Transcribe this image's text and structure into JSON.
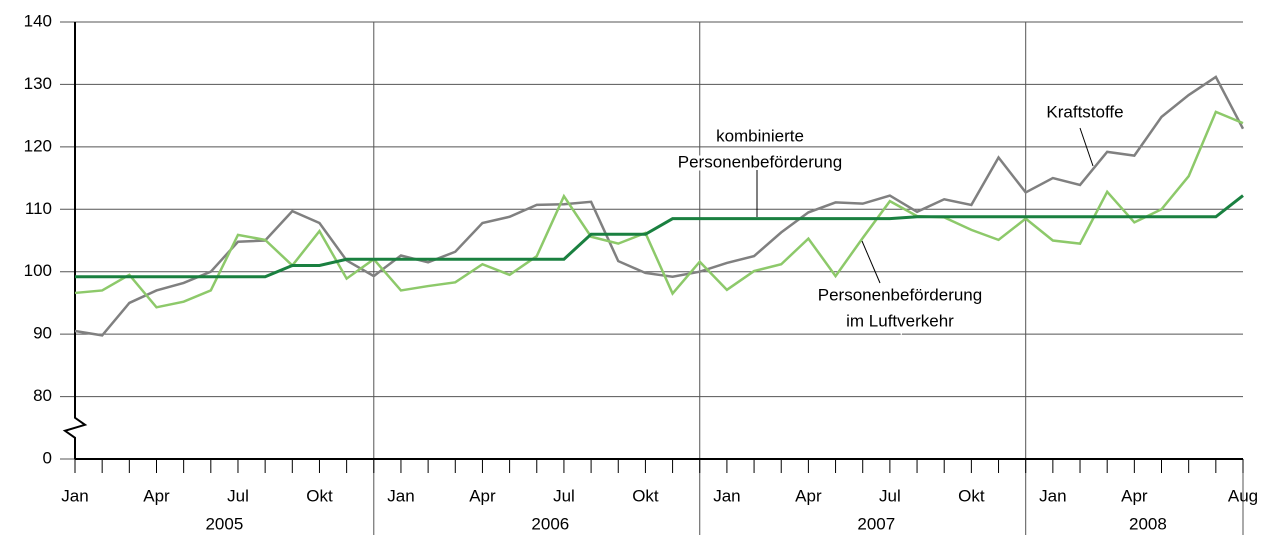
{
  "chart_data": {
    "type": "line",
    "categories": [
      "Jan",
      null,
      null,
      "Apr",
      null,
      null,
      "Jul",
      null,
      null,
      "Okt",
      null,
      null,
      "Jan",
      null,
      null,
      "Apr",
      null,
      null,
      "Jul",
      null,
      null,
      "Okt",
      null,
      null,
      "Jan",
      null,
      null,
      "Apr",
      null,
      null,
      "Jul",
      null,
      null,
      "Okt",
      null,
      null,
      "Jan",
      null,
      null,
      "Apr",
      null,
      null,
      null,
      "Aug"
    ],
    "years": [
      "2005",
      "2006",
      "2007",
      "2008"
    ],
    "ylim": [
      0,
      140
    ],
    "yticks": [
      0,
      80,
      90,
      100,
      110,
      120,
      130,
      140
    ],
    "y_break": [
      0,
      80
    ],
    "grid": true,
    "series": [
      {
        "name": [
          "Kraftstoffe"
        ],
        "color": "#808080",
        "values": [
          90.5,
          89.8,
          95,
          97,
          98.2,
          100,
          104.8,
          105,
          109.7,
          107.8,
          101.8,
          99.3,
          102.6,
          101.5,
          103.2,
          107.8,
          108.8,
          110.7,
          110.8,
          111.2,
          101.7,
          99.8,
          99.2,
          100,
          101.4,
          102.5,
          106.3,
          109.5,
          111.1,
          110.9,
          112.2,
          109.6,
          111.6,
          110.7,
          118.3,
          112.7,
          115,
          113.9,
          119.2,
          118.6,
          124.8,
          128.3,
          131.2,
          122.9
        ]
      },
      {
        "name": [
          "Personenbeförderung",
          "im Luftverkehr"
        ],
        "color": "#8dc96a",
        "values": [
          96.6,
          97,
          99.5,
          94.3,
          95.2,
          97,
          105.9,
          105.1,
          101,
          106.5,
          98.9,
          102,
          97,
          97.7,
          98.3,
          101.2,
          99.5,
          102.5,
          112.1,
          105.6,
          104.5,
          106.2,
          96.5,
          101.6,
          97.1,
          100.1,
          101.2,
          105.3,
          99.3,
          105.4,
          111.3,
          108.9,
          108.7,
          106.7,
          105.1,
          108.5,
          105,
          104.5,
          112.8,
          107.9,
          110,
          115.3,
          125.6,
          123.8
        ]
      },
      {
        "name": [
          "kombinierte",
          "Personenbeförderung"
        ],
        "color": "#1a8040",
        "values": [
          99.2,
          99.2,
          99.2,
          99.2,
          99.2,
          99.2,
          99.2,
          99.2,
          101,
          101,
          102,
          102,
          102,
          102,
          102,
          102,
          102,
          102,
          102,
          106,
          106,
          106,
          108.5,
          108.5,
          108.5,
          108.5,
          108.5,
          108.5,
          108.5,
          108.5,
          108.5,
          108.8,
          108.8,
          108.8,
          108.8,
          108.8,
          108.8,
          108.8,
          108.8,
          108.8,
          108.8,
          108.8,
          108.8,
          112.2
        ]
      }
    ]
  }
}
